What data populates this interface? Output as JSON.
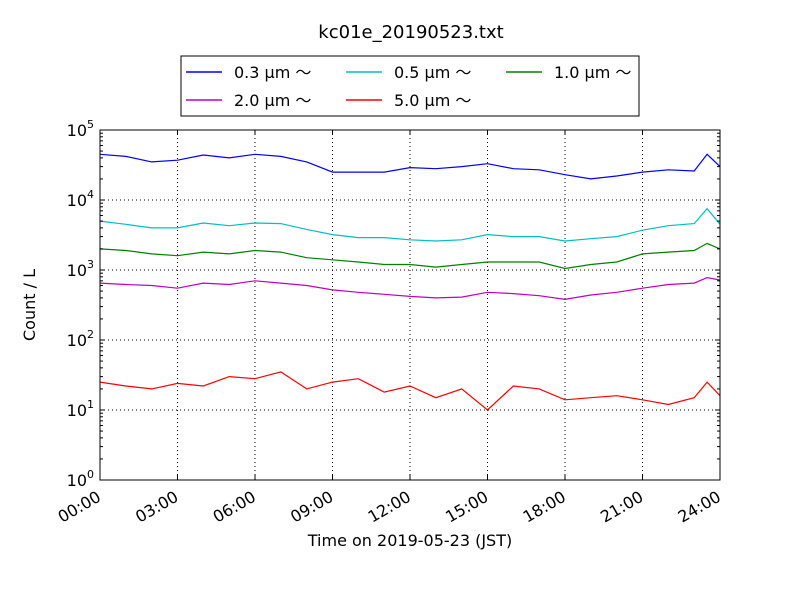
{
  "chart_data": {
    "type": "line",
    "title": "kc01e_20190523.txt",
    "xlabel": "Time on 2019-05-23 (JST)",
    "ylabel": "Count / L",
    "yscale": "log",
    "ylim": [
      1,
      100000
    ],
    "y_tick_values": [
      1,
      10,
      100,
      1000,
      10000,
      100000
    ],
    "y_tick_labels": [
      {
        "base": "10",
        "exp": "0"
      },
      {
        "base": "10",
        "exp": "1"
      },
      {
        "base": "10",
        "exp": "2"
      },
      {
        "base": "10",
        "exp": "3"
      },
      {
        "base": "10",
        "exp": "4"
      },
      {
        "base": "10",
        "exp": "5"
      }
    ],
    "x_tick_hours": [
      0,
      3,
      6,
      9,
      12,
      15,
      18,
      21,
      24
    ],
    "x_tick_labels": [
      "00:00",
      "03:00",
      "06:00",
      "09:00",
      "12:00",
      "15:00",
      "18:00",
      "21:00",
      "24:00"
    ],
    "xlim_hours": [
      0,
      24
    ],
    "grid": true,
    "legend_position": "top-center",
    "legend_columns": 3,
    "x_hours": [
      0,
      1,
      2,
      3,
      4,
      5,
      6,
      7,
      8,
      9,
      10,
      11,
      12,
      13,
      14,
      15,
      16,
      17,
      18,
      19,
      20,
      21,
      22,
      23,
      23.5,
      24
    ],
    "series": [
      {
        "name": "0.3 μm ～",
        "color": "#0000ff",
        "values": [
          45000,
          42000,
          35000,
          37000,
          44000,
          40000,
          45000,
          42000,
          35000,
          25000,
          25000,
          25000,
          29000,
          28000,
          30000,
          33000,
          28000,
          27000,
          23000,
          20000,
          22000,
          25000,
          27000,
          26000,
          45000,
          30000
        ]
      },
      {
        "name": "0.5 μm ～",
        "color": "#00bfbf",
        "values": [
          5000,
          4500,
          4000,
          4000,
          4700,
          4300,
          4700,
          4600,
          3800,
          3200,
          2900,
          2900,
          2700,
          2600,
          2700,
          3200,
          3000,
          3000,
          2600,
          2800,
          3000,
          3700,
          4300,
          4600,
          7500,
          4500
        ]
      },
      {
        "name": "1.0 μm ～",
        "color": "#008000",
        "values": [
          2000,
          1900,
          1700,
          1600,
          1800,
          1700,
          1900,
          1800,
          1500,
          1400,
          1300,
          1200,
          1200,
          1100,
          1200,
          1300,
          1300,
          1300,
          1050,
          1200,
          1300,
          1700,
          1800,
          1900,
          2400,
          2000
        ]
      },
      {
        "name": "2.0 μm ～",
        "color": "#bf00bf",
        "values": [
          650,
          620,
          600,
          550,
          650,
          620,
          700,
          650,
          600,
          520,
          480,
          450,
          420,
          400,
          410,
          480,
          460,
          430,
          380,
          440,
          480,
          550,
          620,
          650,
          780,
          720
        ]
      },
      {
        "name": "5.0 μm ～",
        "color": "#ff0000",
        "values": [
          25,
          22,
          20,
          24,
          22,
          30,
          28,
          35,
          20,
          25,
          28,
          18,
          22,
          15,
          20,
          10,
          22,
          20,
          14,
          15,
          16,
          14,
          12,
          15,
          25,
          16
        ]
      }
    ]
  }
}
